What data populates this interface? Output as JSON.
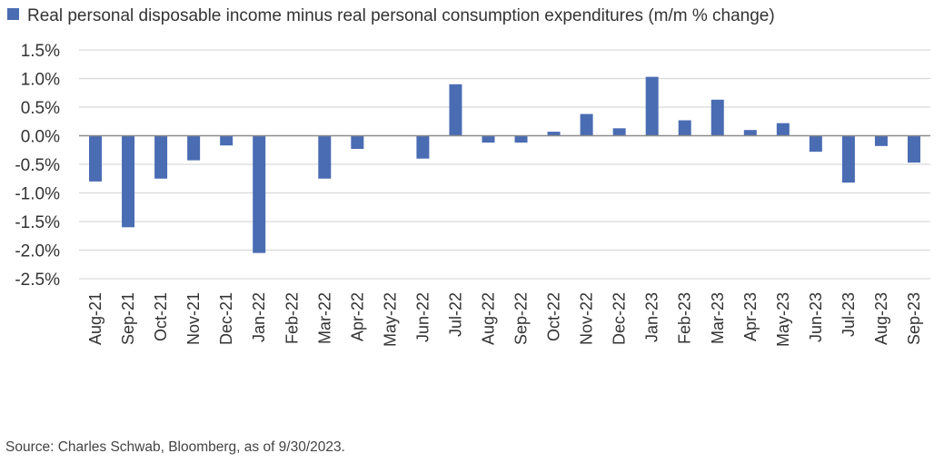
{
  "chart_data": {
    "type": "bar",
    "series": [
      {
        "name": "Real personal disposable income minus real personal consumption expenditures (m/m % change)",
        "color": "#4a6cb3",
        "values": [
          -0.8,
          -1.6,
          -0.75,
          -0.43,
          -0.17,
          -2.05,
          0.0,
          -0.75,
          -0.23,
          0.0,
          -0.4,
          0.9,
          -0.12,
          -0.12,
          0.07,
          0.38,
          0.13,
          1.03,
          0.27,
          0.63,
          0.1,
          0.22,
          -0.28,
          -0.82,
          -0.18,
          -0.47
        ]
      }
    ],
    "categories": [
      "Aug-21",
      "Sep-21",
      "Oct-21",
      "Nov-21",
      "Dec-21",
      "Jan-22",
      "Feb-22",
      "Mar-22",
      "Apr-22",
      "May-22",
      "Jun-22",
      "Jul-22",
      "Aug-22",
      "Sep-22",
      "Oct-22",
      "Nov-22",
      "Dec-22",
      "Jan-23",
      "Feb-23",
      "Mar-23",
      "Apr-23",
      "May-23",
      "Jun-23",
      "Jul-23",
      "Aug-23",
      "Sep-23"
    ],
    "ylim": [
      -2.5,
      1.5
    ],
    "yticks": [
      1.5,
      1.0,
      0.5,
      0.0,
      -0.5,
      -1.0,
      -1.5,
      -2.0,
      -2.5
    ],
    "ytick_labels": [
      "1.5%",
      "1.0%",
      "0.5%",
      "0.0%",
      "-0.5%",
      "-1.0%",
      "-1.5%",
      "-2.0%",
      "-2.5%"
    ],
    "grid": true,
    "legend_position": "top-left",
    "gridline_color": "#d9d9d9",
    "zero_line_color": "#8c8c8c"
  },
  "source": "Source: Charles Schwab, Bloomberg, as of 9/30/2023."
}
